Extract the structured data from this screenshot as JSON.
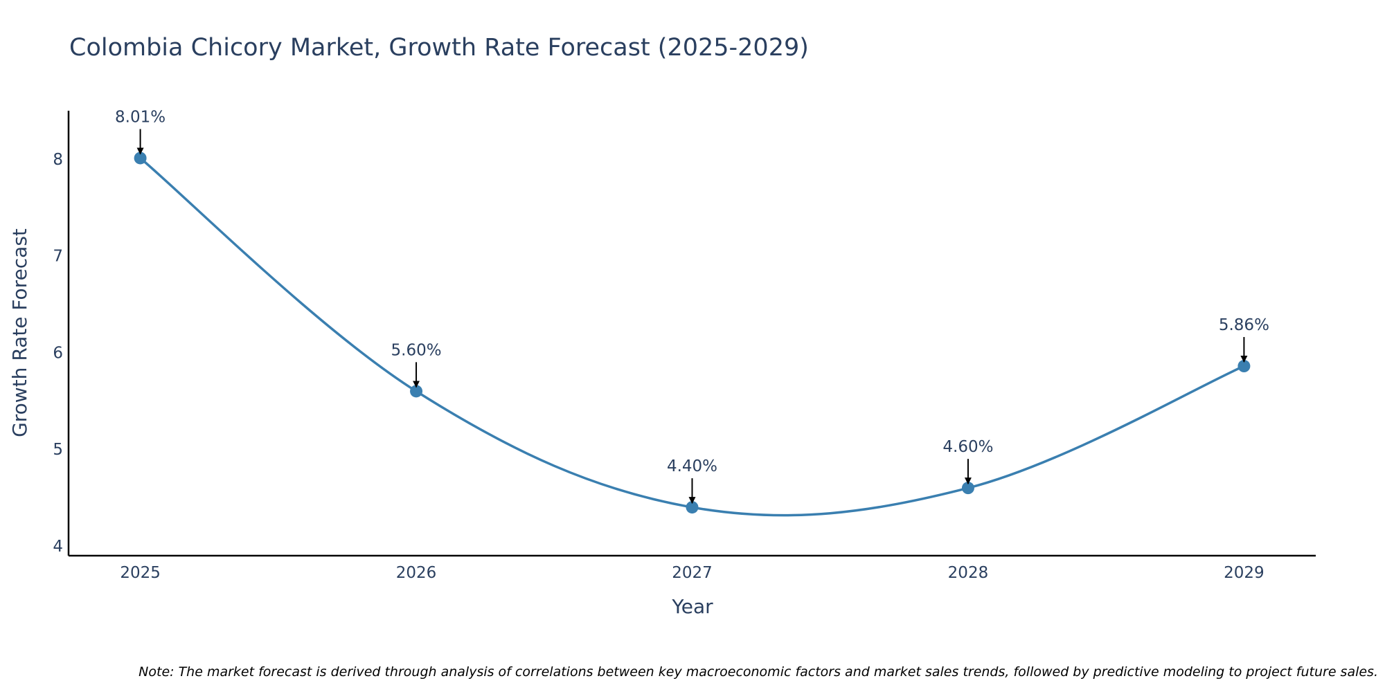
{
  "chart_data": {
    "type": "line",
    "title": "Colombia Chicory Market, Growth Rate Forecast (2025-2029)",
    "xlabel": "Year",
    "ylabel": "Growth Rate Forecast",
    "categories": [
      "2025",
      "2026",
      "2027",
      "2028",
      "2029"
    ],
    "series": [
      {
        "name": "Growth Rate Forecast",
        "values": [
          8.01,
          5.6,
          4.4,
          4.6,
          5.86
        ],
        "labels": [
          "8.01%",
          "5.60%",
          "4.40%",
          "4.60%",
          "5.86%"
        ]
      }
    ],
    "yticks": [
      4,
      5,
      6,
      7,
      8
    ],
    "ylim": [
      3.9,
      8.5
    ],
    "xlim": [
      2024.74,
      2029.26
    ],
    "grid": false,
    "line_shape": "spline",
    "colors": {
      "line": "#3a7fb0",
      "marker": "#3a7fb0",
      "arrow": "#000000",
      "axis": "#000000"
    },
    "note": "Note: The market forecast is derived through analysis of correlations between key macroeconomic factors and market sales trends, followed by predictive modeling to project future sales."
  }
}
